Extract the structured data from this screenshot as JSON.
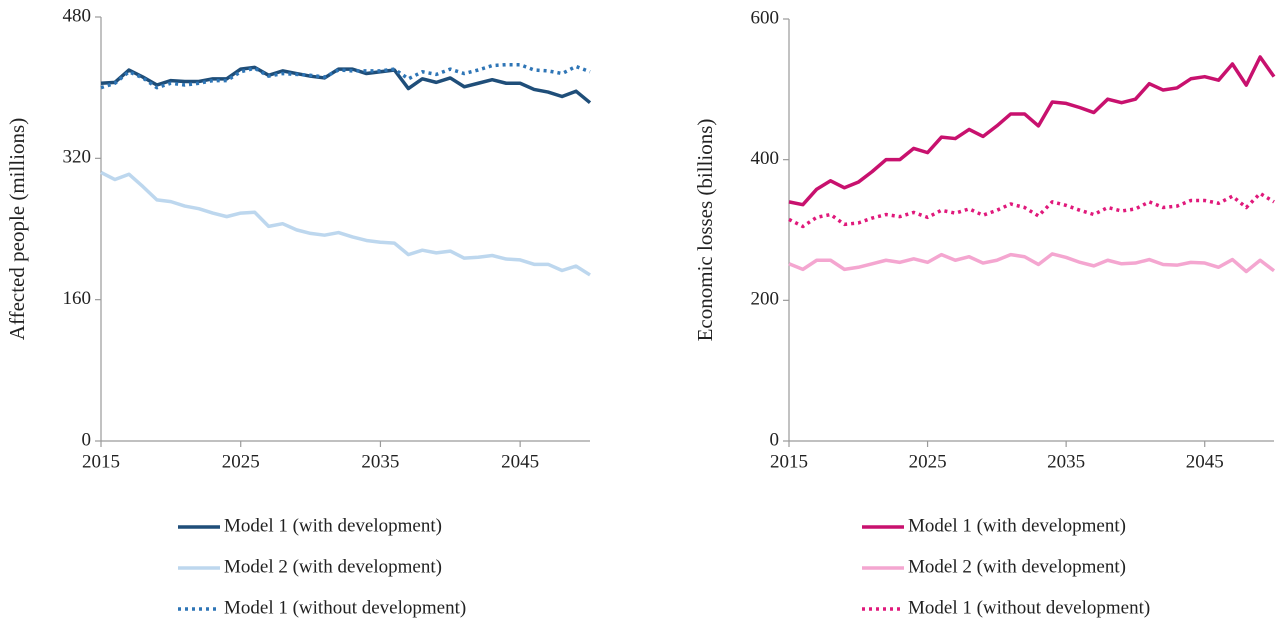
{
  "chart_data": [
    {
      "type": "line",
      "ylabel": "Affected people (millions)",
      "x": [
        2015,
        2016,
        2017,
        2018,
        2019,
        2020,
        2021,
        2022,
        2023,
        2024,
        2025,
        2026,
        2027,
        2028,
        2029,
        2030,
        2031,
        2032,
        2033,
        2034,
        2035,
        2036,
        2037,
        2038,
        2039,
        2040,
        2041,
        2042,
        2043,
        2044,
        2045,
        2046,
        2047,
        2048,
        2049,
        2050
      ],
      "xlim": [
        2015,
        2050
      ],
      "xticks": [
        2015,
        2025,
        2035,
        2045
      ],
      "ylim": [
        0,
        480
      ],
      "yticks": [
        0,
        160,
        320,
        480
      ],
      "series": [
        {
          "name": "Model 1 (with development)",
          "color": "#1f4e79",
          "linestyle": "solid",
          "values": [
            405,
            406,
            420,
            412,
            403,
            408,
            407,
            407,
            410,
            410,
            421,
            423,
            414,
            419,
            416,
            413,
            411,
            421,
            421,
            416,
            418,
            420,
            399,
            410,
            406,
            411,
            401,
            405,
            409,
            405,
            405,
            398,
            395,
            390,
            396,
            383
          ]
        },
        {
          "name": "Model 2 (with development)",
          "color": "#bdd7ee",
          "linestyle": "solid",
          "values": [
            304,
            296,
            302,
            288,
            273,
            271,
            266,
            263,
            258,
            254,
            258,
            259,
            243,
            246,
            239,
            235,
            233,
            236,
            231,
            227,
            225,
            224,
            211,
            216,
            213,
            215,
            207,
            208,
            210,
            206,
            205,
            200,
            200,
            193,
            198,
            188
          ]
        },
        {
          "name": "Model 1 (without development)",
          "color": "#2e75b6",
          "linestyle": "dotted",
          "values": [
            400,
            405,
            418,
            411,
            400,
            405,
            403,
            405,
            408,
            408,
            418,
            422,
            413,
            416,
            415,
            414,
            412,
            420,
            419,
            419,
            419,
            421,
            410,
            418,
            415,
            421,
            416,
            420,
            425,
            426,
            426,
            420,
            419,
            416,
            424,
            418
          ]
        }
      ]
    },
    {
      "type": "line",
      "ylabel": "Economic losses (billions)",
      "x": [
        2015,
        2016,
        2017,
        2018,
        2019,
        2020,
        2021,
        2022,
        2023,
        2024,
        2025,
        2026,
        2027,
        2028,
        2029,
        2030,
        2031,
        2032,
        2033,
        2034,
        2035,
        2036,
        2037,
        2038,
        2039,
        2040,
        2041,
        2042,
        2043,
        2044,
        2045,
        2046,
        2047,
        2048,
        2049,
        2050
      ],
      "xlim": [
        2015,
        2050
      ],
      "xticks": [
        2015,
        2025,
        2035,
        2045
      ],
      "ylim": [
        0,
        600
      ],
      "yticks": [
        0,
        200,
        400,
        600
      ],
      "series": [
        {
          "name": "Model 1 (with development)",
          "color": "#c8116e",
          "linestyle": "solid",
          "values": [
            340,
            336,
            358,
            370,
            360,
            368,
            383,
            400,
            400,
            416,
            410,
            432,
            430,
            443,
            433,
            448,
            465,
            465,
            448,
            482,
            480,
            474,
            467,
            486,
            481,
            486,
            508,
            499,
            502,
            515,
            518,
            513,
            536,
            506,
            546,
            518
          ]
        },
        {
          "name": "Model 2 (with development)",
          "color": "#f4a6d0",
          "linestyle": "solid",
          "values": [
            252,
            244,
            257,
            257,
            244,
            247,
            252,
            257,
            254,
            259,
            254,
            265,
            257,
            262,
            253,
            257,
            265,
            262,
            251,
            266,
            261,
            254,
            249,
            257,
            252,
            253,
            258,
            251,
            250,
            254,
            253,
            247,
            258,
            241,
            257,
            242
          ]
        },
        {
          "name": "Model 1 (without development)",
          "color": "#e0197b",
          "linestyle": "dotted",
          "values": [
            315,
            305,
            318,
            322,
            308,
            310,
            317,
            322,
            319,
            325,
            318,
            328,
            324,
            330,
            321,
            328,
            337,
            332,
            320,
            340,
            335,
            328,
            322,
            332,
            327,
            330,
            340,
            332,
            334,
            342,
            342,
            338,
            348,
            332,
            352,
            340
          ]
        }
      ]
    }
  ]
}
